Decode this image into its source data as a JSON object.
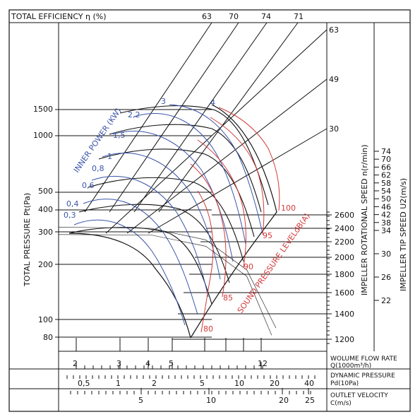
{
  "chart_data": {
    "type": "line",
    "title": "",
    "top_label": "TOTAL EFFICIENCY η (%)",
    "ylabel": "TOTAL PRESSURE Pt(Pa)",
    "y_ticks": [
      "1500",
      "1000",
      "500",
      "400",
      "300",
      "200",
      "100",
      "80"
    ],
    "efficiency_ticks": [
      "63",
      "70",
      "74",
      "71"
    ],
    "speed_label": "IMPELLER ROTATIONAL SPEED n(r/min)",
    "speed_ticks": [
      "2600",
      "2400",
      "2200",
      "2000",
      "1800",
      "1600",
      "1400",
      "1200"
    ],
    "speed_ticks_upper": [
      "63",
      "49",
      "30"
    ],
    "tip_label": "IMPELLER TIP SPEED U2(m/s)",
    "tip_ticks": [
      "74",
      "70",
      "66",
      "62",
      "58",
      "54",
      "50",
      "46",
      "42",
      "38",
      "34",
      "30",
      "26",
      "22"
    ],
    "power_label": "INNER POWER (KW)",
    "power_ticks": [
      "3",
      "4",
      "2,2",
      "1,5",
      "1",
      "0,8",
      "0,6",
      "0,4",
      "0,3"
    ],
    "sound_label": "SOUND PRESSURE LEVELdB(A)",
    "sound_ticks": [
      "100",
      "95",
      "90",
      "85",
      "80"
    ],
    "flow_label": [
      "WOLUME FLOW RATE",
      "Q(1000m³/h)"
    ],
    "flow_ticks": [
      "2",
      "3",
      "4",
      "5",
      "12"
    ],
    "dynamic_label": [
      "DYNAMIC PRESSURE",
      "Pd(10Pa)"
    ],
    "dynamic_ticks": [
      "0,5",
      "1",
      "2",
      "5",
      "10",
      "20",
      "40"
    ],
    "velocity_label": [
      "OUTLET VELOCITY",
      "C(m/s)"
    ],
    "velocity_ticks": [
      "5",
      "10",
      "20",
      "25"
    ],
    "colors": {
      "ink": "#111111",
      "power": "#3a55a8",
      "sound": "#d23a3a"
    },
    "speed_series": [
      {
        "speed": 2600,
        "points": [
          [
            1.4,
            330
          ],
          [
            3.5,
            325
          ],
          [
            6,
            280
          ],
          [
            9,
            190
          ],
          [
            12,
            90
          ]
        ]
      },
      {
        "speed": 2400,
        "points": [
          [
            1.4,
            300
          ],
          [
            3.5,
            298
          ],
          [
            6,
            258
          ],
          [
            9,
            175
          ],
          [
            11.5,
            82
          ]
        ]
      }
    ]
  }
}
